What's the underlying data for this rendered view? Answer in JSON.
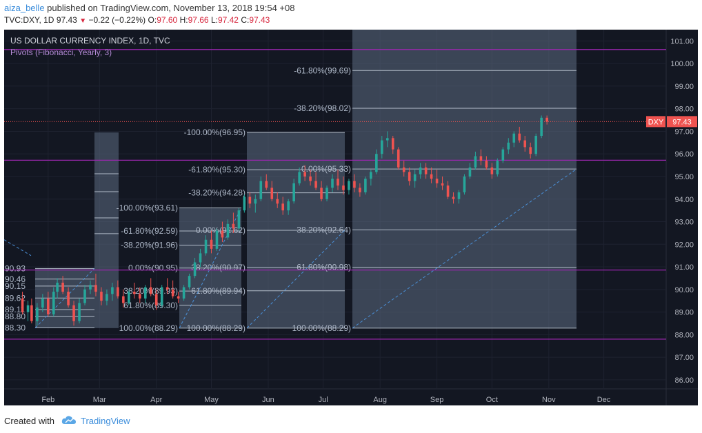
{
  "header": {
    "publisher": "aiza_belle",
    "published_text": "published on TradingView.com, November 13, 2018 19:54 +08",
    "symbol": "TVC:DXY, 1D",
    "last": "97.43",
    "change": "−0.22 (−0.22%)",
    "open_label": "O:",
    "open": "97.60",
    "high_label": "H:",
    "high": "97.66",
    "low_label": "L:",
    "low": "97.42",
    "close_label": "C:",
    "close": "97.43"
  },
  "footer": {
    "created_with": "Created with",
    "brand": "TradingView",
    "logo_icon": "tradingview-cloud-icon"
  },
  "colors": {
    "background": "#131722",
    "up": "#26a69a",
    "down": "#ef5350",
    "pivot_line": "#9c27b0",
    "fib_box": "#5d6b82",
    "fib_text": "#aeb8c8",
    "price_badge": "#ef5350"
  },
  "chart_data": {
    "type": "candlestick",
    "title": "US DOLLAR CURRENCY INDEX, 1D, TVC",
    "indicator": "Pivots (Fibonacci, Yearly, 3)",
    "ylim": [
      85.6,
      101.5
    ],
    "y_ticks": [
      "86.00",
      "87.00",
      "88.00",
      "89.00",
      "90.00",
      "91.00",
      "92.00",
      "93.00",
      "94.00",
      "95.00",
      "96.00",
      "97.00",
      "98.00",
      "99.00",
      "100.00",
      "101.00"
    ],
    "x_labels": [
      "Feb",
      "Mar",
      "Apr",
      "May",
      "Jun",
      "Jul",
      "Aug",
      "Sep",
      "Oct",
      "Nov",
      "Dec"
    ],
    "x_label_days": [
      31,
      59,
      90,
      120,
      151,
      181,
      212,
      243,
      273,
      304,
      334
    ],
    "x_range_days": [
      7,
      368
    ],
    "price_badge": {
      "symbol": "DXY",
      "value": "97.43",
      "price": 97.43
    },
    "pivot_levels": [
      100.62,
      95.72,
      90.86,
      87.8
    ],
    "candles": [
      {
        "d": 17,
        "o": 89.6,
        "h": 89.9,
        "l": 88.9,
        "c": 89.0
      },
      {
        "d": 20,
        "o": 89.0,
        "h": 89.5,
        "l": 88.6,
        "c": 89.3
      },
      {
        "d": 22,
        "o": 89.3,
        "h": 89.6,
        "l": 88.5,
        "c": 88.6
      },
      {
        "d": 25,
        "o": 88.6,
        "h": 89.4,
        "l": 88.4,
        "c": 89.2
      },
      {
        "d": 28,
        "o": 89.2,
        "h": 89.8,
        "l": 89.0,
        "c": 89.6
      },
      {
        "d": 31,
        "o": 89.6,
        "h": 89.9,
        "l": 88.8,
        "c": 88.9
      },
      {
        "d": 34,
        "o": 88.9,
        "h": 90.1,
        "l": 88.8,
        "c": 89.9
      },
      {
        "d": 36,
        "o": 89.9,
        "h": 90.5,
        "l": 89.6,
        "c": 90.3
      },
      {
        "d": 39,
        "o": 90.3,
        "h": 90.6,
        "l": 89.8,
        "c": 89.9
      },
      {
        "d": 42,
        "o": 89.9,
        "h": 90.1,
        "l": 89.2,
        "c": 89.3
      },
      {
        "d": 45,
        "o": 89.3,
        "h": 89.5,
        "l": 88.4,
        "c": 88.6
      },
      {
        "d": 48,
        "o": 88.6,
        "h": 89.6,
        "l": 88.5,
        "c": 89.4
      },
      {
        "d": 51,
        "o": 89.4,
        "h": 90.2,
        "l": 89.3,
        "c": 90.0
      },
      {
        "d": 54,
        "o": 90.0,
        "h": 90.4,
        "l": 89.8,
        "c": 90.2
      },
      {
        "d": 57,
        "o": 90.2,
        "h": 90.7,
        "l": 89.7,
        "c": 89.9
      },
      {
        "d": 60,
        "o": 89.9,
        "h": 90.1,
        "l": 89.3,
        "c": 89.5
      },
      {
        "d": 63,
        "o": 89.5,
        "h": 90.0,
        "l": 89.3,
        "c": 89.8
      },
      {
        "d": 66,
        "o": 89.8,
        "h": 90.3,
        "l": 89.5,
        "c": 90.1
      },
      {
        "d": 69,
        "o": 90.1,
        "h": 90.4,
        "l": 89.6,
        "c": 89.7
      },
      {
        "d": 72,
        "o": 89.7,
        "h": 90.0,
        "l": 89.2,
        "c": 89.4
      },
      {
        "d": 75,
        "o": 89.4,
        "h": 90.0,
        "l": 89.3,
        "c": 89.9
      },
      {
        "d": 78,
        "o": 89.9,
        "h": 90.3,
        "l": 89.6,
        "c": 89.8
      },
      {
        "d": 81,
        "o": 89.8,
        "h": 90.1,
        "l": 89.4,
        "c": 89.6
      },
      {
        "d": 84,
        "o": 89.6,
        "h": 90.2,
        "l": 89.4,
        "c": 90.1
      },
      {
        "d": 87,
        "o": 90.1,
        "h": 90.5,
        "l": 89.7,
        "c": 89.8
      },
      {
        "d": 90,
        "o": 89.8,
        "h": 90.0,
        "l": 89.1,
        "c": 89.3
      },
      {
        "d": 93,
        "o": 89.3,
        "h": 90.2,
        "l": 89.2,
        "c": 90.1
      },
      {
        "d": 96,
        "o": 90.1,
        "h": 90.5,
        "l": 89.8,
        "c": 90.0
      },
      {
        "d": 99,
        "o": 90.0,
        "h": 90.4,
        "l": 89.6,
        "c": 89.7
      },
      {
        "d": 102,
        "o": 89.7,
        "h": 89.9,
        "l": 89.4,
        "c": 89.6
      },
      {
        "d": 105,
        "o": 89.6,
        "h": 90.2,
        "l": 89.5,
        "c": 90.1
      },
      {
        "d": 108,
        "o": 90.1,
        "h": 90.7,
        "l": 90.0,
        "c": 90.6
      },
      {
        "d": 111,
        "o": 90.6,
        "h": 91.4,
        "l": 90.5,
        "c": 91.2
      },
      {
        "d": 114,
        "o": 91.2,
        "h": 91.8,
        "l": 91.0,
        "c": 91.6
      },
      {
        "d": 117,
        "o": 91.6,
        "h": 92.4,
        "l": 91.5,
        "c": 92.2
      },
      {
        "d": 120,
        "o": 92.2,
        "h": 92.6,
        "l": 91.6,
        "c": 91.8
      },
      {
        "d": 123,
        "o": 91.8,
        "h": 92.7,
        "l": 91.7,
        "c": 92.6
      },
      {
        "d": 126,
        "o": 92.6,
        "h": 93.0,
        "l": 92.1,
        "c": 92.3
      },
      {
        "d": 129,
        "o": 92.3,
        "h": 93.1,
        "l": 92.2,
        "c": 92.9
      },
      {
        "d": 132,
        "o": 92.9,
        "h": 93.4,
        "l": 92.5,
        "c": 92.7
      },
      {
        "d": 135,
        "o": 92.7,
        "h": 93.6,
        "l": 92.6,
        "c": 93.5
      },
      {
        "d": 138,
        "o": 93.5,
        "h": 94.2,
        "l": 93.4,
        "c": 94.1
      },
      {
        "d": 141,
        "o": 94.1,
        "h": 94.3,
        "l": 93.6,
        "c": 93.8
      },
      {
        "d": 144,
        "o": 93.8,
        "h": 94.2,
        "l": 93.4,
        "c": 94.0
      },
      {
        "d": 147,
        "o": 94.0,
        "h": 95.0,
        "l": 93.9,
        "c": 94.8
      },
      {
        "d": 150,
        "o": 94.8,
        "h": 95.1,
        "l": 94.4,
        "c": 94.5
      },
      {
        "d": 153,
        "o": 94.5,
        "h": 94.8,
        "l": 93.9,
        "c": 94.0
      },
      {
        "d": 156,
        "o": 94.0,
        "h": 94.3,
        "l": 93.6,
        "c": 93.8
      },
      {
        "d": 159,
        "o": 93.8,
        "h": 94.1,
        "l": 93.3,
        "c": 93.5
      },
      {
        "d": 162,
        "o": 93.5,
        "h": 94.0,
        "l": 93.3,
        "c": 93.9
      },
      {
        "d": 165,
        "o": 93.9,
        "h": 94.9,
        "l": 93.8,
        "c": 94.7
      },
      {
        "d": 168,
        "o": 94.7,
        "h": 95.4,
        "l": 94.6,
        "c": 95.2
      },
      {
        "d": 171,
        "o": 95.2,
        "h": 95.5,
        "l": 94.8,
        "c": 95.0
      },
      {
        "d": 174,
        "o": 95.0,
        "h": 95.3,
        "l": 94.6,
        "c": 94.8
      },
      {
        "d": 177,
        "o": 94.8,
        "h": 95.2,
        "l": 94.4,
        "c": 94.5
      },
      {
        "d": 180,
        "o": 94.5,
        "h": 94.8,
        "l": 93.9,
        "c": 94.0
      },
      {
        "d": 183,
        "o": 94.0,
        "h": 94.6,
        "l": 93.9,
        "c": 94.5
      },
      {
        "d": 186,
        "o": 94.5,
        "h": 95.1,
        "l": 94.3,
        "c": 94.9
      },
      {
        "d": 189,
        "o": 94.9,
        "h": 95.3,
        "l": 94.4,
        "c": 94.6
      },
      {
        "d": 192,
        "o": 94.6,
        "h": 95.0,
        "l": 94.2,
        "c": 94.4
      },
      {
        "d": 195,
        "o": 94.4,
        "h": 94.9,
        "l": 94.2,
        "c": 94.8
      },
      {
        "d": 198,
        "o": 94.8,
        "h": 95.1,
        "l": 94.3,
        "c": 94.5
      },
      {
        "d": 201,
        "o": 94.5,
        "h": 94.7,
        "l": 94.1,
        "c": 94.3
      },
      {
        "d": 204,
        "o": 94.3,
        "h": 95.0,
        "l": 94.2,
        "c": 94.9
      },
      {
        "d": 207,
        "o": 94.9,
        "h": 95.3,
        "l": 94.6,
        "c": 95.2
      },
      {
        "d": 210,
        "o": 95.2,
        "h": 96.2,
        "l": 95.1,
        "c": 96.0
      },
      {
        "d": 213,
        "o": 96.0,
        "h": 96.8,
        "l": 95.8,
        "c": 96.6
      },
      {
        "d": 216,
        "o": 96.6,
        "h": 97.0,
        "l": 96.3,
        "c": 96.7
      },
      {
        "d": 219,
        "o": 96.7,
        "h": 96.8,
        "l": 96.0,
        "c": 96.2
      },
      {
        "d": 222,
        "o": 96.2,
        "h": 96.3,
        "l": 95.3,
        "c": 95.4
      },
      {
        "d": 225,
        "o": 95.4,
        "h": 95.7,
        "l": 95.0,
        "c": 95.2
      },
      {
        "d": 228,
        "o": 95.2,
        "h": 95.4,
        "l": 94.6,
        "c": 94.8
      },
      {
        "d": 231,
        "o": 94.8,
        "h": 95.3,
        "l": 94.5,
        "c": 95.1
      },
      {
        "d": 234,
        "o": 95.1,
        "h": 95.6,
        "l": 94.9,
        "c": 95.4
      },
      {
        "d": 237,
        "o": 95.4,
        "h": 95.6,
        "l": 94.9,
        "c": 95.1
      },
      {
        "d": 240,
        "o": 95.1,
        "h": 95.4,
        "l": 94.7,
        "c": 94.9
      },
      {
        "d": 243,
        "o": 94.9,
        "h": 95.3,
        "l": 94.5,
        "c": 94.7
      },
      {
        "d": 246,
        "o": 94.7,
        "h": 95.0,
        "l": 94.4,
        "c": 94.6
      },
      {
        "d": 249,
        "o": 94.6,
        "h": 94.8,
        "l": 94.0,
        "c": 94.1
      },
      {
        "d": 252,
        "o": 94.1,
        "h": 94.3,
        "l": 93.8,
        "c": 94.0
      },
      {
        "d": 255,
        "o": 94.0,
        "h": 94.4,
        "l": 93.8,
        "c": 94.3
      },
      {
        "d": 258,
        "o": 94.3,
        "h": 95.1,
        "l": 94.2,
        "c": 95.0
      },
      {
        "d": 261,
        "o": 95.0,
        "h": 95.6,
        "l": 94.9,
        "c": 95.4
      },
      {
        "d": 264,
        "o": 95.4,
        "h": 96.1,
        "l": 95.3,
        "c": 95.9
      },
      {
        "d": 267,
        "o": 95.9,
        "h": 96.2,
        "l": 95.5,
        "c": 95.7
      },
      {
        "d": 270,
        "o": 95.7,
        "h": 95.9,
        "l": 95.3,
        "c": 95.4
      },
      {
        "d": 273,
        "o": 95.4,
        "h": 95.6,
        "l": 94.9,
        "c": 95.1
      },
      {
        "d": 276,
        "o": 95.1,
        "h": 95.8,
        "l": 95.0,
        "c": 95.7
      },
      {
        "d": 279,
        "o": 95.7,
        "h": 96.3,
        "l": 95.6,
        "c": 96.2
      },
      {
        "d": 282,
        "o": 96.2,
        "h": 96.7,
        "l": 96.0,
        "c": 96.5
      },
      {
        "d": 285,
        "o": 96.5,
        "h": 97.0,
        "l": 96.3,
        "c": 96.9
      },
      {
        "d": 288,
        "o": 96.9,
        "h": 97.2,
        "l": 96.5,
        "c": 96.6
      },
      {
        "d": 291,
        "o": 96.6,
        "h": 96.8,
        "l": 96.1,
        "c": 96.3
      },
      {
        "d": 294,
        "o": 96.3,
        "h": 96.5,
        "l": 95.8,
        "c": 96.0
      },
      {
        "d": 297,
        "o": 96.0,
        "h": 96.9,
        "l": 95.9,
        "c": 96.8
      },
      {
        "d": 300,
        "o": 96.8,
        "h": 97.7,
        "l": 96.7,
        "c": 97.6
      },
      {
        "d": 303,
        "o": 97.6,
        "h": 97.7,
        "l": 97.3,
        "c": 97.43
      }
    ],
    "fib_boxes": [
      {
        "x0": 51,
        "x1": 137,
        "top": 90.93,
        "bottom": 88.3,
        "lines": [
          {
            "p": 90.93,
            "text": "90.93",
            "side": "left"
          },
          {
            "p": 90.46,
            "text": "90.46",
            "side": "left"
          },
          {
            "p": 90.15,
            "text": "90.15",
            "side": "left"
          },
          {
            "p": 89.62,
            "text": "89.62",
            "side": "left"
          },
          {
            "p": 89.11,
            "text": "89.11",
            "side": "left"
          },
          {
            "p": 88.8,
            "text": "88.80",
            "side": "left"
          },
          {
            "p": 88.3,
            "text": "88.30",
            "side": "left"
          }
        ]
      },
      {
        "x0": 137,
        "x1": 172,
        "top": 96.95,
        "bottom": 88.29,
        "lines": [
          {
            "p": 95.12,
            "text": "",
            "side": "left"
          },
          {
            "p": 94.33,
            "text": "",
            "side": "left"
          },
          {
            "p": 93.17,
            "text": "",
            "side": "left"
          },
          {
            "p": 92.47,
            "text": "",
            "side": "left"
          }
        ]
      },
      {
        "x0": 260,
        "x1": 350,
        "top": 93.61,
        "bottom": 88.29,
        "lines": [
          {
            "p": 93.61,
            "text": "-100.00%(93.61)",
            "side": "left"
          },
          {
            "p": 92.59,
            "text": "-61.80%(92.59)",
            "side": "left"
          },
          {
            "p": 91.96,
            "text": "-38.20%(91.96)",
            "side": "left"
          },
          {
            "p": 90.95,
            "text": "0.00%(90.95)",
            "side": "left"
          },
          {
            "p": 89.93,
            "text": "38.20%(89.93)",
            "side": "left"
          },
          {
            "p": 89.3,
            "text": "61.80%(89.30)",
            "side": "left"
          },
          {
            "p": 88.29,
            "text": "100.00%(88.29)",
            "side": "left"
          }
        ]
      },
      {
        "x0": 358,
        "x1": 500,
        "top": 96.95,
        "bottom": 88.29,
        "lines": [
          {
            "p": 96.95,
            "text": "-100.00%(96.95)",
            "side": "left"
          },
          {
            "p": 95.3,
            "text": "-61.80%(95.30)",
            "side": "left"
          },
          {
            "p": 94.28,
            "text": "-38.20%(94.28)",
            "side": "left"
          },
          {
            "p": 92.62,
            "text": "0.00%(92.62)",
            "side": "left"
          },
          {
            "p": 90.97,
            "text": "38.20%(90.97)",
            "side": "left"
          },
          {
            "p": 89.94,
            "text": "61.80%(89.94)",
            "side": "left"
          },
          {
            "p": 88.29,
            "text": "100.00%(88.29)",
            "side": "left"
          }
        ]
      },
      {
        "x0": 511,
        "x1": 836,
        "top": 101.5,
        "bottom": 88.29,
        "lines": [
          {
            "p": 99.69,
            "text": "-61.80%(99.69)",
            "side": "left"
          },
          {
            "p": 98.02,
            "text": "-38.20%(98.02)",
            "side": "left"
          },
          {
            "p": 95.33,
            "text": "0.00%(95.33)",
            "side": "left"
          },
          {
            "p": 92.64,
            "text": "38.20%(92.64)",
            "side": "left"
          },
          {
            "p": 90.98,
            "text": "61.80%(90.98)",
            "side": "left"
          },
          {
            "p": 88.29,
            "text": "100.00%(88.29)",
            "side": "left"
          }
        ]
      }
    ],
    "trend_lines": [
      {
        "x0": 51,
        "y0": 88.3,
        "x1": 137,
        "y1": 90.93
      },
      {
        "x0": 260,
        "y0": 88.29,
        "x1": 350,
        "y1": 93.61
      },
      {
        "x0": 358,
        "y0": 88.29,
        "x1": 500,
        "y1": 92.62
      },
      {
        "x0": 511,
        "y0": 88.29,
        "x1": 836,
        "y1": 95.33
      }
    ]
  }
}
